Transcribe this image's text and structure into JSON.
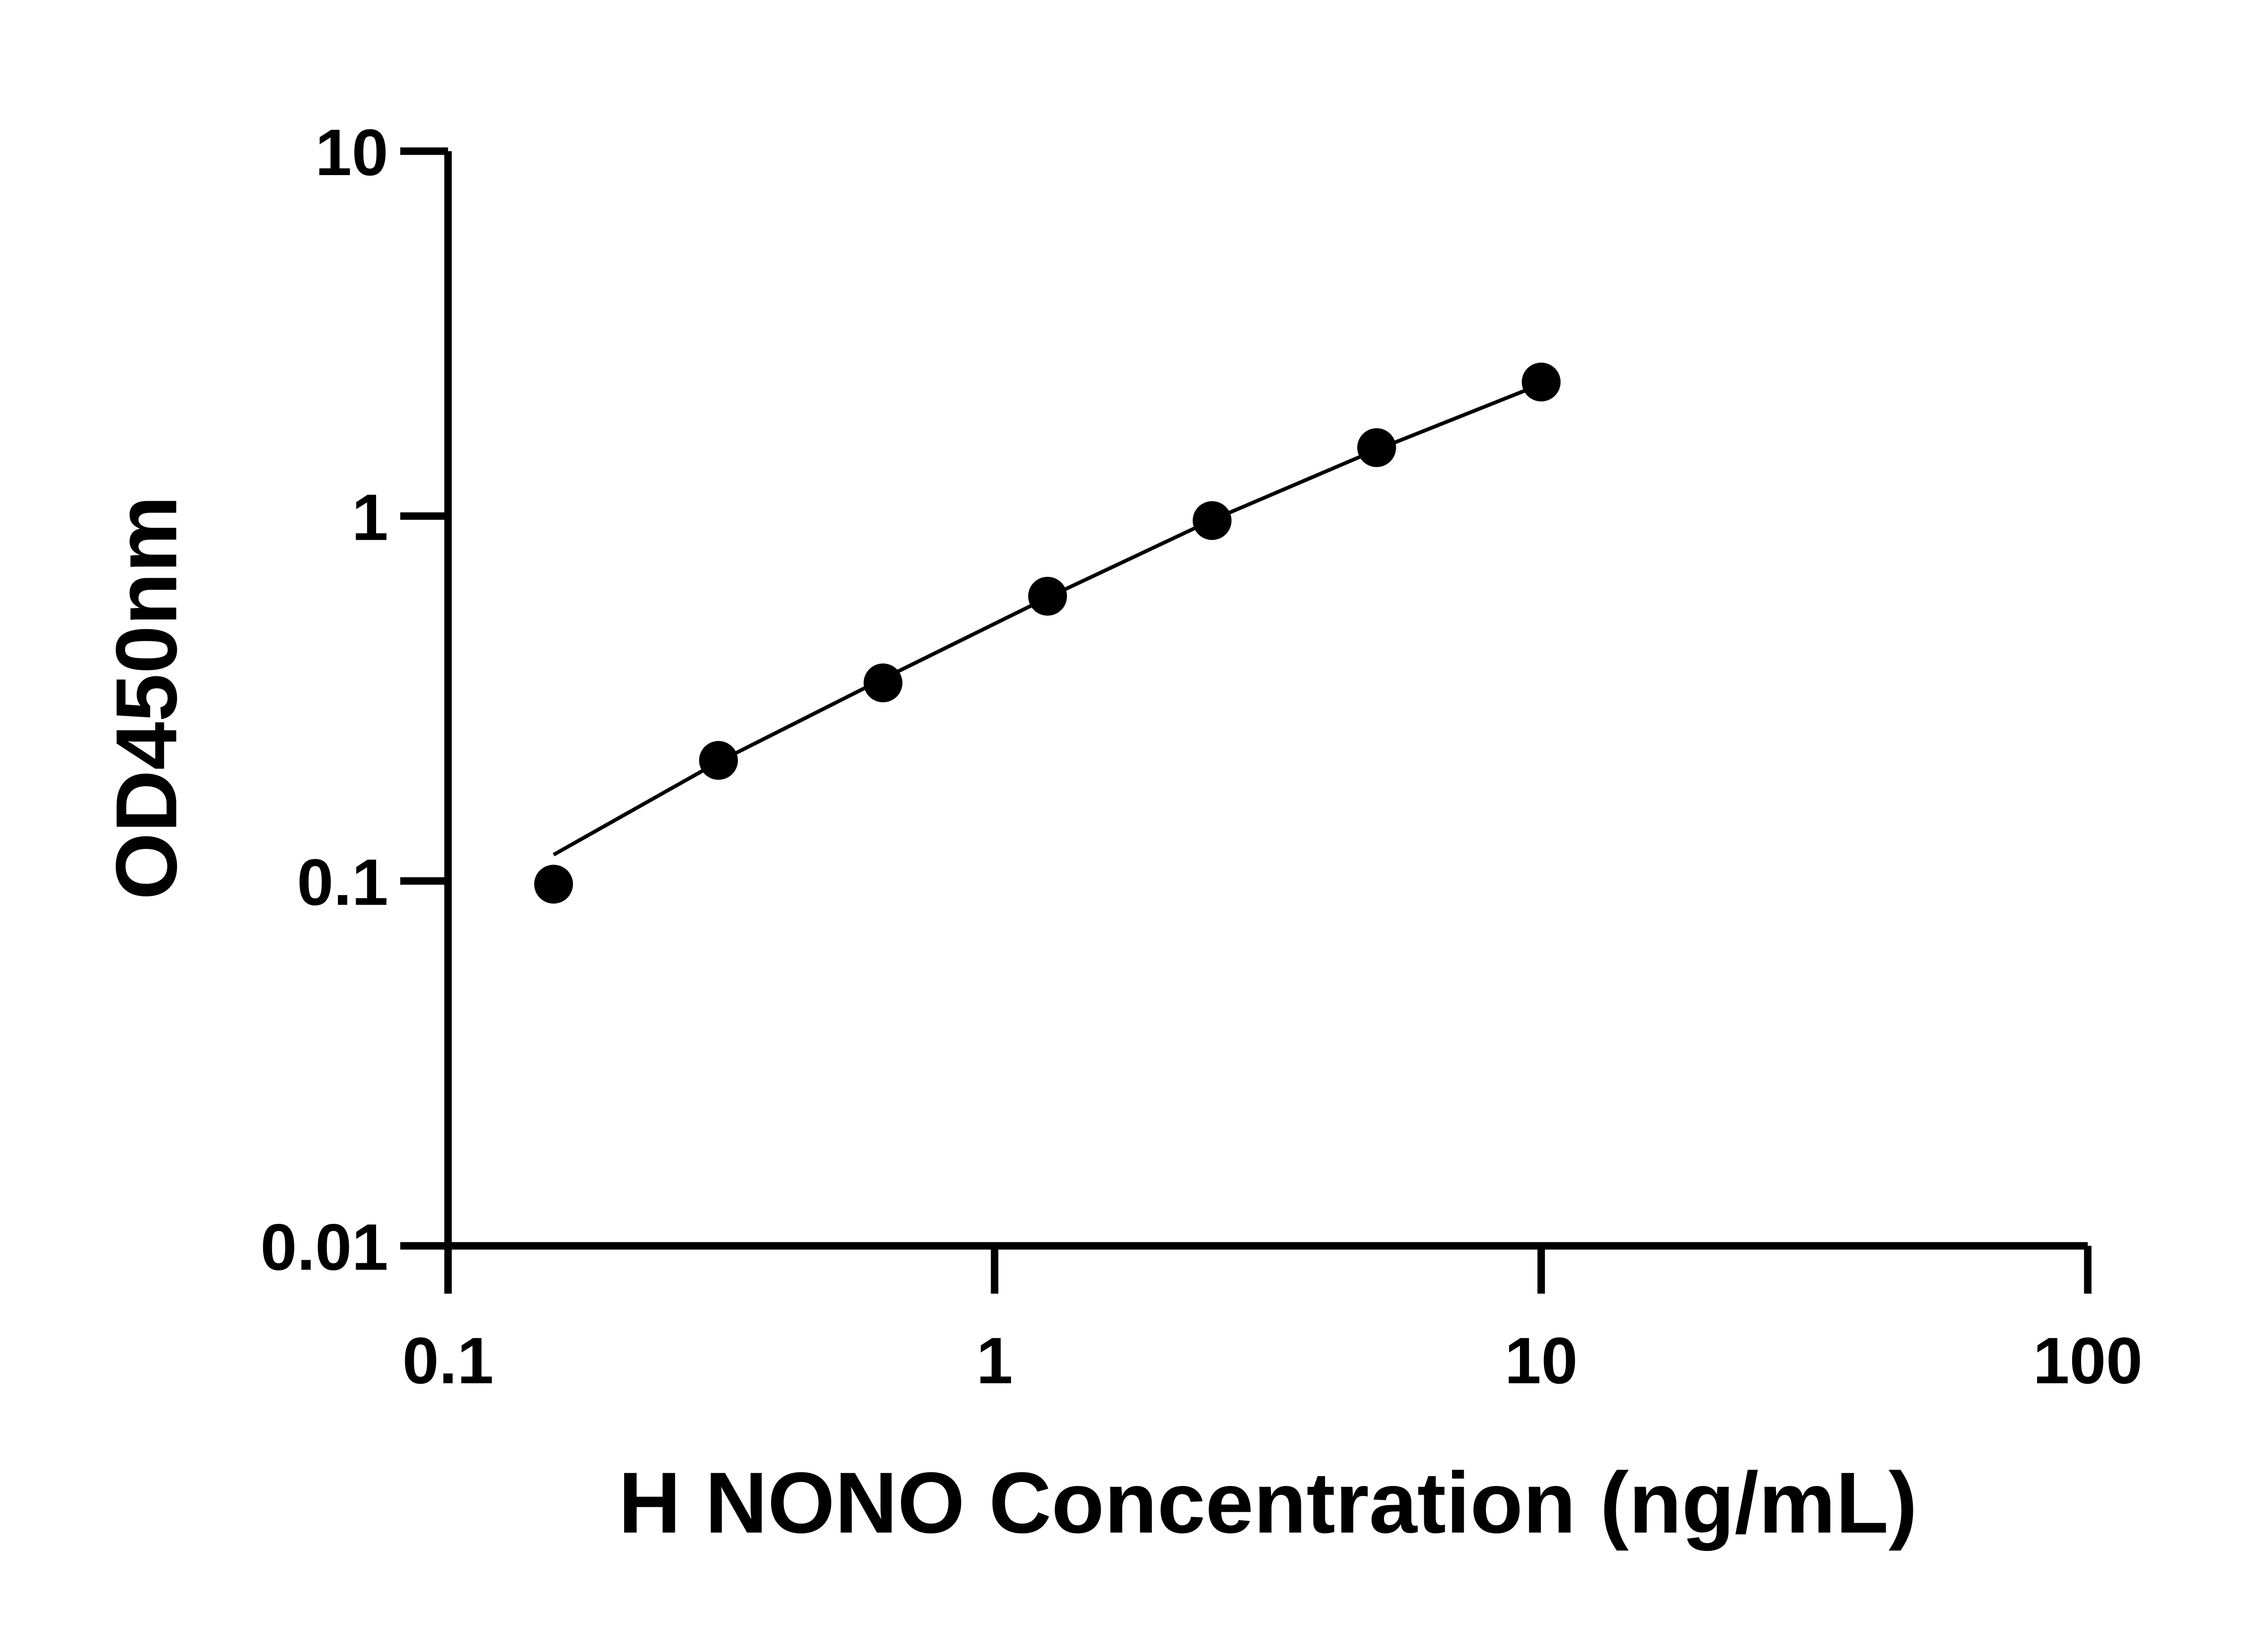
{
  "chart_data": {
    "type": "scatter",
    "title": "",
    "xlabel": "H NONO Concentration (ng/mL)",
    "ylabel": "OD450nm",
    "x_scale": "log",
    "y_scale": "log",
    "xlim": [
      0.1,
      100
    ],
    "ylim": [
      0.01,
      10
    ],
    "x_ticks": [
      0.1,
      1,
      10,
      100
    ],
    "x_tick_labels": [
      "0.1",
      "1",
      "10",
      "100"
    ],
    "y_ticks": [
      0.01,
      0.1,
      1,
      10
    ],
    "y_tick_labels": [
      "0.01",
      "0.1",
      "1",
      "10"
    ],
    "grid": false,
    "legend": "none",
    "colors": {
      "points": "#000000",
      "line": "#000000",
      "axes": "#000000"
    },
    "series": [
      {
        "x": [
          0.156,
          0.3125,
          0.625,
          1.25,
          2.5,
          5,
          10
        ],
        "y": [
          0.098,
          0.214,
          0.349,
          0.603,
          0.972,
          1.54,
          2.33
        ]
      }
    ],
    "fit_curve": {
      "x": [
        0.156,
        0.3125,
        0.625,
        1.25,
        2.5,
        5,
        10
      ],
      "y": [
        0.118,
        0.212,
        0.358,
        0.598,
        0.975,
        1.52,
        2.3
      ]
    }
  }
}
